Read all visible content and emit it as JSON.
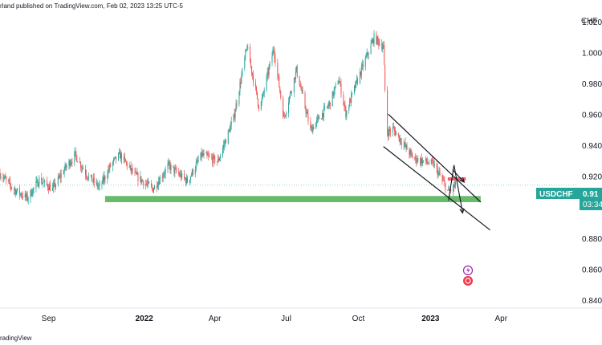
{
  "header": {
    "published_text": "rland published on TradingView.com, Feb 02, 2023 13:25 UTC-5"
  },
  "footer": {
    "brand_text": "radingView"
  },
  "chart_data": {
    "type": "candlestick",
    "symbol_label": "USDCHF",
    "last_price_label": "0.91",
    "countdown_label": "03:34",
    "currency_label": "CHF",
    "y_ticks": [
      "1.020",
      "1.000",
      "0.980",
      "0.960",
      "0.940",
      "0.920",
      "0.900",
      "0.880",
      "0.860",
      "0.840"
    ],
    "y_tick_values": [
      1.02,
      1.0,
      0.98,
      0.96,
      0.94,
      0.92,
      0.9,
      0.88,
      0.86,
      0.84
    ],
    "ylim": [
      0.835,
      1.027
    ],
    "x_ticks": [
      "Sep",
      "2022",
      "Apr",
      "Jul",
      "Oct",
      "2023",
      "Apr"
    ],
    "x_tick_dates": [
      "2021-09-01",
      "2022-01-01",
      "2022-04-01",
      "2022-07-01",
      "2022-10-01",
      "2023-01-01",
      "2023-04-01"
    ],
    "xlim": [
      "2021-07-01",
      "2023-07-08"
    ],
    "last_price": 0.9145,
    "up_color": "#26a69a",
    "down_color": "#ef5350",
    "support_zone": {
      "from": "2021-11-12",
      "to": "2023-03-06",
      "low": 0.9035,
      "high": 0.9075,
      "color": "#4caf50"
    },
    "resistance_marker": {
      "from": "2023-01-23",
      "to": "2023-02-15",
      "price": 0.9185,
      "color": "#f23645"
    },
    "channel_lines": [
      {
        "x1": "2022-11-08",
        "y1": 0.9605,
        "x2": "2023-03-06",
        "y2": 0.9035
      },
      {
        "x1": "2022-11-02",
        "y1": 0.9395,
        "x2": "2023-03-18",
        "y2": 0.8855
      }
    ],
    "projection_arrows": [
      {
        "points": [
          [
            "2023-01-24",
            0.9045
          ],
          [
            "2023-01-31",
            0.9275
          ],
          [
            "2023-02-11",
            0.8965
          ]
        ]
      },
      {
        "points": [
          [
            "2023-01-29",
            0.9245
          ],
          [
            "2023-02-13",
            0.9165
          ]
        ]
      }
    ],
    "guide_points": [
      [
        "2021-07-01",
        0.922
      ],
      [
        "2021-07-18",
        0.912
      ],
      [
        "2021-08-05",
        0.906
      ],
      [
        "2021-08-20",
        0.918
      ],
      [
        "2021-09-06",
        0.912
      ],
      [
        "2021-09-24",
        0.927
      ],
      [
        "2021-10-05",
        0.934
      ],
      [
        "2021-10-20",
        0.921
      ],
      [
        "2021-11-05",
        0.913
      ],
      [
        "2021-11-20",
        0.928
      ],
      [
        "2021-12-01",
        0.934
      ],
      [
        "2021-12-20",
        0.921
      ],
      [
        "2022-01-12",
        0.912
      ],
      [
        "2022-02-01",
        0.927
      ],
      [
        "2022-02-25",
        0.917
      ],
      [
        "2022-03-15",
        0.934
      ],
      [
        "2022-04-05",
        0.93
      ],
      [
        "2022-04-25",
        0.958
      ],
      [
        "2022-05-12",
        1.004
      ],
      [
        "2022-05-28",
        0.963
      ],
      [
        "2022-06-15",
        1.003
      ],
      [
        "2022-06-28",
        0.958
      ],
      [
        "2022-07-14",
        0.989
      ],
      [
        "2022-08-01",
        0.95
      ],
      [
        "2022-08-25",
        0.967
      ],
      [
        "2022-09-06",
        0.983
      ],
      [
        "2022-09-15",
        0.961
      ],
      [
        "2022-10-01",
        0.984
      ],
      [
        "2022-10-21",
        1.01
      ],
      [
        "2022-11-02",
        1.004
      ],
      [
        "2022-11-06",
        0.948
      ],
      [
        "2022-11-14",
        0.951
      ],
      [
        "2022-11-25",
        0.943
      ],
      [
        "2022-12-10",
        0.932
      ],
      [
        "2023-01-05",
        0.928
      ],
      [
        "2023-01-24",
        0.91
      ],
      [
        "2023-02-02",
        0.9145
      ]
    ]
  }
}
